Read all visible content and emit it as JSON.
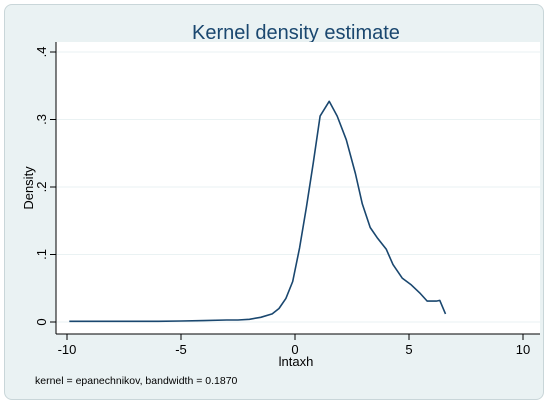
{
  "chart_data": {
    "type": "line",
    "title": "Kernel density estimate",
    "xlabel": "lntaxh",
    "ylabel": "Density",
    "note": "kernel = epanechnikov, bandwidth = 0.1870",
    "xlim": [
      -10,
      10
    ],
    "ylim": [
      0,
      0.4
    ],
    "grid": true,
    "x_ticks": [
      -10,
      -5,
      0,
      5,
      10
    ],
    "x_tick_labels": [
      "-10",
      "-5",
      "0",
      "5",
      "10"
    ],
    "y_ticks": [
      0,
      0.1,
      0.2,
      0.3,
      0.4
    ],
    "y_tick_labels": [
      "0",
      ".1",
      ".2",
      ".3",
      ".4"
    ],
    "series": [
      {
        "color": "#1a476f",
        "points": [
          [
            -9.9,
            0.001
          ],
          [
            -8,
            0.001
          ],
          [
            -6,
            0.001
          ],
          [
            -5,
            0.0015
          ],
          [
            -4,
            0.002
          ],
          [
            -3,
            0.003
          ],
          [
            -2.5,
            0.003
          ],
          [
            -2,
            0.004
          ],
          [
            -1.5,
            0.007
          ],
          [
            -1.0,
            0.012
          ],
          [
            -0.7,
            0.02
          ],
          [
            -0.4,
            0.035
          ],
          [
            -0.1,
            0.06
          ],
          [
            0.2,
            0.11
          ],
          [
            0.5,
            0.17
          ],
          [
            0.8,
            0.235
          ],
          [
            1.1,
            0.305
          ],
          [
            1.5,
            0.327
          ],
          [
            1.85,
            0.305
          ],
          [
            2.25,
            0.27
          ],
          [
            2.65,
            0.22
          ],
          [
            2.95,
            0.175
          ],
          [
            3.3,
            0.14
          ],
          [
            3.6,
            0.125
          ],
          [
            4.0,
            0.108
          ],
          [
            4.3,
            0.085
          ],
          [
            4.7,
            0.065
          ],
          [
            5.1,
            0.055
          ],
          [
            5.5,
            0.042
          ],
          [
            5.8,
            0.031
          ],
          [
            6.2,
            0.031
          ],
          [
            6.35,
            0.032
          ],
          [
            6.6,
            0.012
          ]
        ]
      }
    ]
  }
}
